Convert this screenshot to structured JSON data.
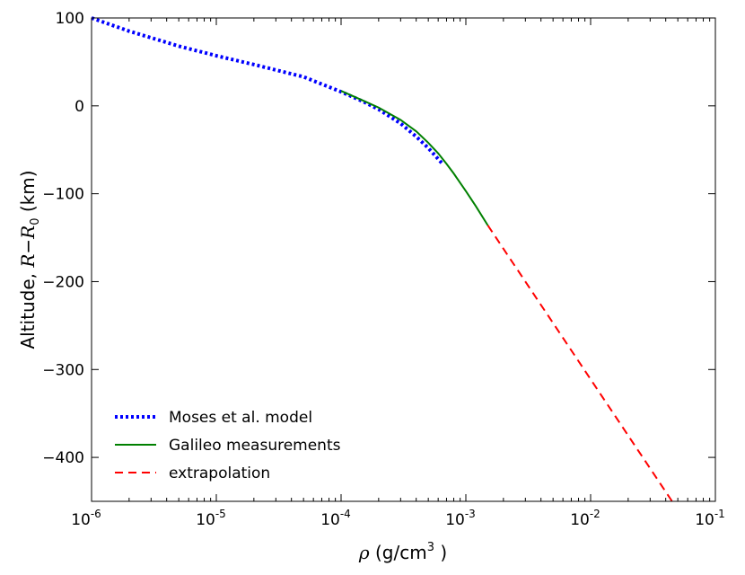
{
  "chart_data": {
    "type": "line",
    "title": "",
    "x_scale": "log",
    "xlim": [
      1e-06,
      0.1
    ],
    "ylim": [
      -450,
      100
    ],
    "grid": false,
    "legend_position": "lower-left",
    "xlabel": {
      "symbol": "ρ",
      "text_before": " (g/cm",
      "superscript": "3",
      "text_after": " )"
    },
    "ylabel": {
      "text": "Altitude, ",
      "math_R": "R",
      "math_minus": "−",
      "math_R0": "R",
      "math_sub": "0",
      "unit": " (km)"
    },
    "x_ticks": [
      {
        "value": 1e-06,
        "base": "10",
        "exp": "-6"
      },
      {
        "value": 1e-05,
        "base": "10",
        "exp": "-5"
      },
      {
        "value": 0.0001,
        "base": "10",
        "exp": "-4"
      },
      {
        "value": 0.001,
        "base": "10",
        "exp": "-3"
      },
      {
        "value": 0.01,
        "base": "10",
        "exp": "-2"
      },
      {
        "value": 0.1,
        "base": "10",
        "exp": "-1"
      }
    ],
    "y_ticks": [
      {
        "value": 100,
        "label": "100"
      },
      {
        "value": 0,
        "label": "0"
      },
      {
        "value": -100,
        "label": "−100"
      },
      {
        "value": -200,
        "label": "−200"
      },
      {
        "value": -300,
        "label": "−300"
      },
      {
        "value": -400,
        "label": "−400"
      }
    ],
    "series": [
      {
        "name": "Moses et al. model",
        "color": "#0000ff",
        "style": "dotted",
        "x": [
          1e-06,
          2e-06,
          5e-06,
          1e-05,
          2e-05,
          5e-05,
          0.0001,
          0.00015,
          0.0002,
          0.0003,
          0.0004,
          0.0005,
          0.00065
        ],
        "y": [
          100,
          85,
          68,
          57,
          47,
          33,
          16,
          5,
          -4,
          -20,
          -35,
          -48,
          -66
        ]
      },
      {
        "name": "Galileo measurements",
        "color": "#008000",
        "style": "solid",
        "x": [
          0.0001,
          0.00015,
          0.0002,
          0.0003,
          0.0004,
          0.0005,
          0.0006,
          0.0007,
          0.0008,
          0.001,
          0.0012,
          0.0015
        ],
        "y": [
          17,
          6,
          -2,
          -16,
          -29,
          -42,
          -54,
          -66,
          -77,
          -97,
          -114,
          -136
        ]
      },
      {
        "name": "extrapolation",
        "color": "#ff0000",
        "style": "dashed",
        "x": [
          0.0015,
          0.045
        ],
        "y": [
          -136,
          -450
        ]
      }
    ]
  }
}
